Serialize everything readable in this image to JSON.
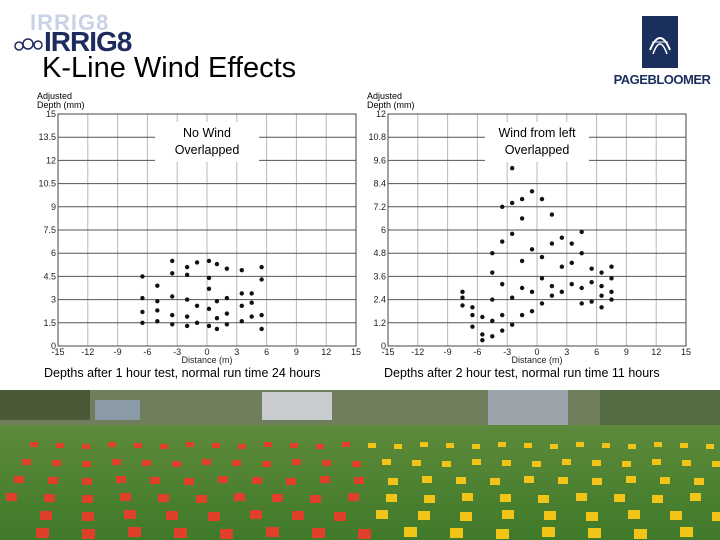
{
  "slide": {
    "title": "K-Line Wind Effects",
    "logo_left_text": "IRRIG8",
    "logo_right_text": "PAGEBLOOMER"
  },
  "chart_data": [
    {
      "type": "scatter",
      "ylabel": "Adjusted Depth (mm)",
      "xlabel": "Distance (m)",
      "annotation": [
        "No Wind",
        "Overlapped"
      ],
      "caption": "Depths after 1 hour test, normal run time 24 hours",
      "xlim": [
        -15,
        15
      ],
      "ylim": [
        0,
        15
      ],
      "xticks": [
        "-15",
        "-12",
        "-9",
        "-6",
        "-3",
        "0",
        "3",
        "6",
        "9",
        "12",
        "15"
      ],
      "yticks": [
        "0",
        "1.5",
        "3",
        "4.5",
        "6",
        "7.5",
        "9",
        "10.5",
        "12",
        "13.5",
        "15"
      ],
      "points": [
        [
          -6.5,
          1.5
        ],
        [
          -6.5,
          2.2
        ],
        [
          -6.5,
          3.1
        ],
        [
          -6.5,
          4.5
        ],
        [
          -5,
          1.6
        ],
        [
          -5,
          2.3
        ],
        [
          -5,
          2.9
        ],
        [
          -5,
          3.9
        ],
        [
          -3.5,
          1.4
        ],
        [
          -3.5,
          2.0
        ],
        [
          -3.5,
          3.2
        ],
        [
          -3.5,
          4.7
        ],
        [
          -3.5,
          5.5
        ],
        [
          -2,
          1.3
        ],
        [
          -2,
          1.9
        ],
        [
          -2,
          3.0
        ],
        [
          -2,
          4.6
        ],
        [
          -2,
          5.1
        ],
        [
          -1,
          1.5
        ],
        [
          -1,
          2.6
        ],
        [
          -1,
          5.4
        ],
        [
          0.2,
          1.3
        ],
        [
          0.2,
          2.4
        ],
        [
          0.2,
          3.7
        ],
        [
          0.2,
          4.4
        ],
        [
          0.2,
          5.5
        ],
        [
          1,
          1.1
        ],
        [
          1,
          1.8
        ],
        [
          1,
          2.9
        ],
        [
          1,
          5.3
        ],
        [
          2,
          1.4
        ],
        [
          2,
          2.1
        ],
        [
          2,
          3.1
        ],
        [
          2,
          5.0
        ],
        [
          3.5,
          1.6
        ],
        [
          3.5,
          2.6
        ],
        [
          3.5,
          3.4
        ],
        [
          3.5,
          4.9
        ],
        [
          4.5,
          1.9
        ],
        [
          4.5,
          2.8
        ],
        [
          4.5,
          3.4
        ],
        [
          5.5,
          1.1
        ],
        [
          5.5,
          2.0
        ],
        [
          5.5,
          4.3
        ],
        [
          5.5,
          5.1
        ]
      ]
    },
    {
      "type": "scatter",
      "ylabel": "Adjusted Depth (mm)",
      "xlabel": "Distance (m)",
      "annotation": [
        "Wind from left",
        "Overlapped"
      ],
      "caption": "Depths after 2 hour test, normal run time 11 hours",
      "xlim": [
        -15,
        15
      ],
      "ylim": [
        0,
        12
      ],
      "xticks": [
        "-15",
        "-12",
        "-9",
        "-6",
        "-3",
        "0",
        "3",
        "6",
        "9",
        "12",
        "15"
      ],
      "yticks": [
        "0",
        "1.2",
        "2.4",
        "3.6",
        "4.8",
        "6",
        "7.2",
        "8.4",
        "9.6",
        "10.8",
        "12"
      ],
      "points": [
        [
          -7.5,
          2.5
        ],
        [
          -7.5,
          2.8
        ],
        [
          -7.5,
          2.1
        ],
        [
          -6.5,
          2.0
        ],
        [
          -6.5,
          1.6
        ],
        [
          -6.5,
          1.0
        ],
        [
          -5.5,
          1.5
        ],
        [
          -5.5,
          0.6
        ],
        [
          -5.5,
          0.3
        ],
        [
          -4.5,
          4.8
        ],
        [
          -4.5,
          3.8
        ],
        [
          -4.5,
          2.4
        ],
        [
          -4.5,
          1.3
        ],
        [
          -4.5,
          0.5
        ],
        [
          -3.5,
          7.2
        ],
        [
          -3.5,
          5.4
        ],
        [
          -3.5,
          3.2
        ],
        [
          -3.5,
          1.6
        ],
        [
          -3.5,
          0.8
        ],
        [
          -2.5,
          9.2
        ],
        [
          -2.5,
          7.4
        ],
        [
          -2.5,
          5.8
        ],
        [
          -2.5,
          2.5
        ],
        [
          -2.5,
          1.1
        ],
        [
          -1.5,
          7.6
        ],
        [
          -1.5,
          6.6
        ],
        [
          -1.5,
          4.4
        ],
        [
          -1.5,
          3.0
        ],
        [
          -1.5,
          1.6
        ],
        [
          -0.5,
          8.0
        ],
        [
          -0.5,
          5.0
        ],
        [
          -0.5,
          2.8
        ],
        [
          -0.5,
          1.8
        ],
        [
          0.5,
          7.6
        ],
        [
          0.5,
          4.6
        ],
        [
          0.5,
          3.5
        ],
        [
          0.5,
          2.2
        ],
        [
          1.5,
          6.8
        ],
        [
          1.5,
          5.3
        ],
        [
          1.5,
          3.1
        ],
        [
          1.5,
          2.6
        ],
        [
          2.5,
          5.6
        ],
        [
          2.5,
          4.1
        ],
        [
          2.5,
          2.8
        ],
        [
          3.5,
          5.3
        ],
        [
          3.5,
          4.3
        ],
        [
          3.5,
          3.2
        ],
        [
          4.5,
          5.9
        ],
        [
          4.5,
          4.8
        ],
        [
          4.5,
          3.0
        ],
        [
          4.5,
          2.2
        ],
        [
          5.5,
          4.0
        ],
        [
          5.5,
          3.3
        ],
        [
          5.5,
          2.3
        ],
        [
          6.5,
          3.8
        ],
        [
          6.5,
          3.1
        ],
        [
          6.5,
          2.6
        ],
        [
          6.5,
          2.0
        ],
        [
          7.5,
          4.1
        ],
        [
          7.5,
          3.5
        ],
        [
          7.5,
          2.8
        ],
        [
          7.5,
          2.4
        ]
      ]
    }
  ]
}
